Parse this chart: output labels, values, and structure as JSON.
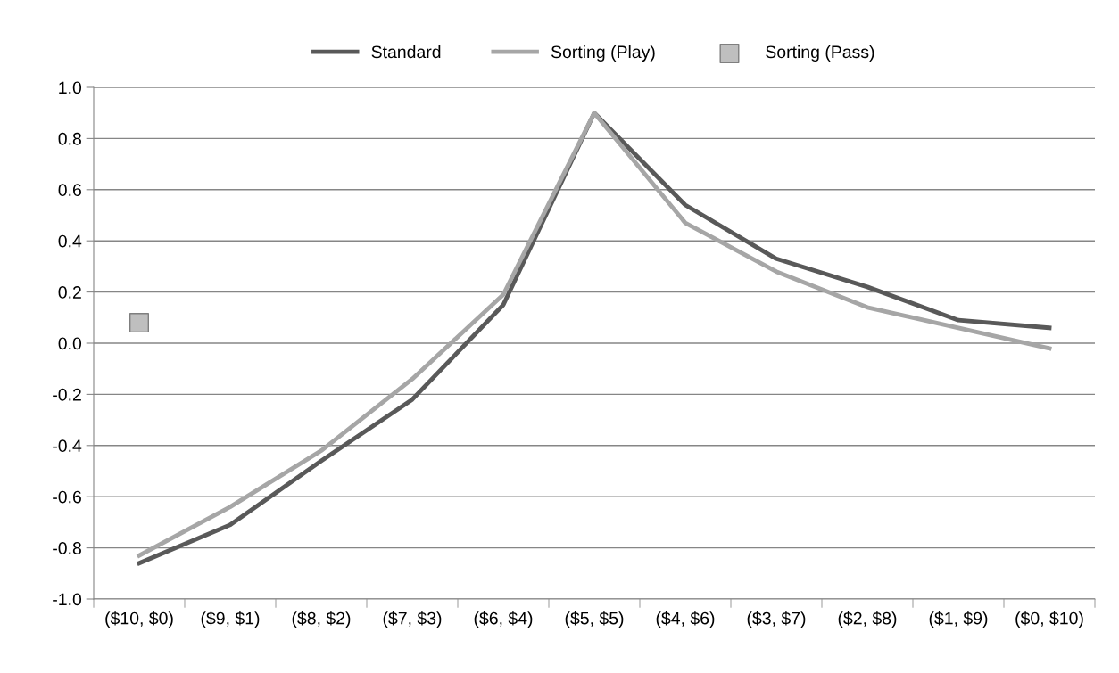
{
  "chart_data": {
    "type": "line",
    "categories": [
      "($10, $0)",
      "($9, $1)",
      "($8, $2)",
      "($7, $3)",
      "($6, $4)",
      "($5, $5)",
      "($4, $6)",
      "($3, $7)",
      "($2, $8)",
      "($1, $9)",
      "($0, $10)"
    ],
    "series": [
      {
        "name": "Standard",
        "color": "#595959",
        "marker": "none",
        "values": [
          -0.86,
          -0.71,
          -0.46,
          -0.22,
          0.15,
          0.9,
          0.54,
          0.33,
          0.22,
          0.09,
          0.06
        ]
      },
      {
        "name": "Sorting (Play)",
        "color": "#a6a6a6",
        "marker": "none",
        "values": [
          -0.83,
          -0.64,
          -0.42,
          -0.14,
          0.19,
          0.9,
          0.47,
          0.28,
          0.14,
          0.06,
          -0.02
        ]
      },
      {
        "name": "Sorting (Pass)",
        "color": "#bfbfbf",
        "type": "scatter",
        "marker": "square",
        "values": [
          0.08,
          null,
          null,
          null,
          null,
          null,
          null,
          null,
          null,
          null,
          null
        ]
      }
    ],
    "ylim": [
      -1.0,
      1.0
    ],
    "yticks": [
      {
        "value": -1.0,
        "label": "-1.0"
      },
      {
        "value": -0.8,
        "label": "-0.8"
      },
      {
        "value": -0.6,
        "label": "-0.6"
      },
      {
        "value": -0.4,
        "label": "-0.4"
      },
      {
        "value": -0.2,
        "label": "-0.2"
      },
      {
        "value": 0,
        "label": "0.0"
      },
      {
        "value": 0.2,
        "label": "0.2"
      },
      {
        "value": 0.4,
        "label": "0.4"
      },
      {
        "value": 0.6,
        "label": "0.6"
      },
      {
        "value": 0.8,
        "label": "0.8"
      },
      {
        "value": 1.0,
        "label": "1.0"
      }
    ],
    "grid": "y",
    "legend": "top"
  }
}
